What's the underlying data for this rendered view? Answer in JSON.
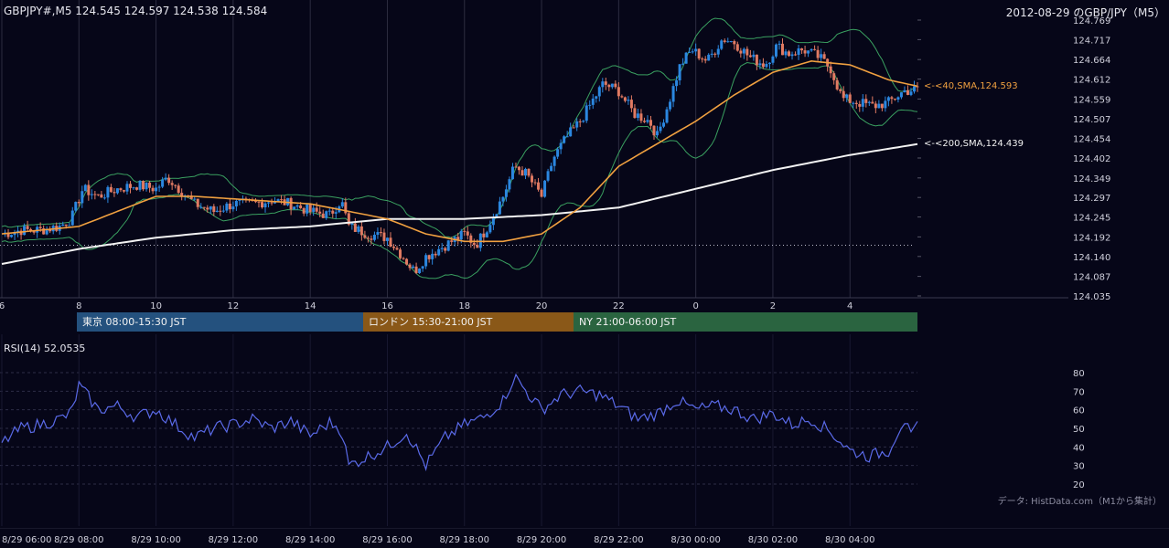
{
  "header": {
    "symbol_quote": "GBPJPY#,M5 124.545 124.597 124.538 124.584",
    "title": "2012-08-29 のGBP/JPY（M5）"
  },
  "ma_labels": {
    "sma40": "<-<40,SMA,124.593",
    "sma200": "<-<200,SMA,124.439"
  },
  "sessions": {
    "tokyo": "東京 08:00-15:30 JST",
    "london": "ロンドン 15:30-21:00 JST",
    "ny": "NY 21:00-06:00 JST"
  },
  "rsi": {
    "label": "RSI(14) 52.0535"
  },
  "source_note": "データ: HistData.com（M1から集計）",
  "colors": {
    "background": "#060618",
    "candle_up": "#2b87e0",
    "candle_down": "#e07a62",
    "sma40": "#f0a040",
    "sma200": "#f2f2f2",
    "bollinger": "#3aa060",
    "rsi": "#5a6ae8",
    "grid": "#2c2c40"
  },
  "chart_data": [
    {
      "type": "candlestick",
      "name": "price",
      "y_ticks": [
        "124.769",
        "124.717",
        "124.664",
        "124.612",
        "124.559",
        "124.507",
        "124.454",
        "124.402",
        "124.349",
        "124.297",
        "124.245",
        "124.192",
        "124.140",
        "124.087",
        "124.035"
      ],
      "ylim": [
        124.035,
        124.769
      ],
      "x_tick_labels": [
        "6",
        "8",
        "10",
        "12",
        "14",
        "16",
        "18",
        "20",
        "22",
        "0",
        "2",
        "4"
      ],
      "x_hours_range": [
        6.0,
        29.75
      ],
      "dotted_level": 124.17,
      "close_anchors": [
        [
          6.0,
          124.2
        ],
        [
          6.5,
          124.21
        ],
        [
          7.0,
          124.21
        ],
        [
          7.5,
          124.22
        ],
        [
          7.8,
          124.24
        ],
        [
          8.1,
          124.32
        ],
        [
          8.5,
          124.3
        ],
        [
          9.0,
          124.32
        ],
        [
          9.5,
          124.33
        ],
        [
          10.0,
          124.32
        ],
        [
          10.3,
          124.35
        ],
        [
          10.6,
          124.32
        ],
        [
          11.0,
          124.28
        ],
        [
          11.5,
          124.26
        ],
        [
          12.0,
          124.28
        ],
        [
          12.5,
          124.28
        ],
        [
          13.0,
          124.29
        ],
        [
          13.5,
          124.28
        ],
        [
          14.0,
          124.26
        ],
        [
          14.5,
          124.25
        ],
        [
          14.8,
          124.29
        ],
        [
          15.0,
          124.22
        ],
        [
          15.5,
          124.2
        ],
        [
          16.0,
          124.19
        ],
        [
          16.4,
          124.14
        ],
        [
          16.7,
          124.1
        ],
        [
          17.0,
          124.14
        ],
        [
          17.5,
          124.17
        ],
        [
          18.0,
          124.2
        ],
        [
          18.3,
          124.17
        ],
        [
          18.6,
          124.22
        ],
        [
          19.0,
          124.3
        ],
        [
          19.3,
          124.38
        ],
        [
          19.6,
          124.36
        ],
        [
          20.0,
          124.3
        ],
        [
          20.3,
          124.4
        ],
        [
          20.6,
          124.45
        ],
        [
          21.0,
          124.5
        ],
        [
          21.3,
          124.55
        ],
        [
          21.6,
          124.6
        ],
        [
          22.0,
          124.58
        ],
        [
          22.4,
          124.52
        ],
        [
          22.8,
          124.5
        ],
        [
          23.0,
          124.46
        ],
        [
          23.3,
          124.55
        ],
        [
          23.6,
          124.65
        ],
        [
          23.9,
          124.69
        ],
        [
          24.3,
          124.66
        ],
        [
          24.7,
          124.72
        ],
        [
          25.0,
          124.71
        ],
        [
          25.4,
          124.67
        ],
        [
          25.8,
          124.65
        ],
        [
          26.1,
          124.7
        ],
        [
          26.4,
          124.68
        ],
        [
          26.8,
          124.69
        ],
        [
          27.2,
          124.67
        ],
        [
          27.5,
          124.64
        ],
        [
          27.8,
          124.56
        ],
        [
          28.2,
          124.55
        ],
        [
          28.6,
          124.54
        ],
        [
          29.0,
          124.55
        ],
        [
          29.4,
          124.58
        ],
        [
          29.75,
          124.584
        ]
      ],
      "series": [
        {
          "name": "40,SMA",
          "last": 124.593,
          "anchors": [
            [
              6.0,
              124.2
            ],
            [
              8.0,
              124.22
            ],
            [
              9.0,
              124.26
            ],
            [
              10.0,
              124.3
            ],
            [
              11.0,
              124.3
            ],
            [
              12.5,
              124.29
            ],
            [
              14.0,
              124.28
            ],
            [
              15.0,
              124.26
            ],
            [
              16.0,
              124.24
            ],
            [
              17.0,
              124.2
            ],
            [
              18.0,
              124.18
            ],
            [
              19.0,
              124.18
            ],
            [
              20.0,
              124.2
            ],
            [
              21.0,
              124.27
            ],
            [
              22.0,
              124.38
            ],
            [
              23.0,
              124.44
            ],
            [
              24.0,
              124.5
            ],
            [
              25.0,
              124.57
            ],
            [
              26.0,
              124.63
            ],
            [
              27.0,
              124.66
            ],
            [
              28.0,
              124.65
            ],
            [
              29.0,
              124.61
            ],
            [
              29.75,
              124.593
            ]
          ]
        },
        {
          "name": "200,SMA",
          "last": 124.439,
          "anchors": [
            [
              6.0,
              124.12
            ],
            [
              8.0,
              124.16
            ],
            [
              10.0,
              124.19
            ],
            [
              12.0,
              124.21
            ],
            [
              14.0,
              124.22
            ],
            [
              16.0,
              124.24
            ],
            [
              18.0,
              124.24
            ],
            [
              20.0,
              124.25
            ],
            [
              22.0,
              124.27
            ],
            [
              24.0,
              124.32
            ],
            [
              26.0,
              124.37
            ],
            [
              28.0,
              124.41
            ],
            [
              29.75,
              124.439
            ]
          ]
        }
      ]
    },
    {
      "type": "line",
      "name": "RSI(14)",
      "last": 52.0535,
      "y_ticks": [
        80,
        70,
        60,
        50,
        40,
        30,
        20
      ],
      "ylim": [
        20,
        80
      ],
      "anchors": [
        [
          6.0,
          42
        ],
        [
          6.5,
          50
        ],
        [
          7.0,
          52
        ],
        [
          7.5,
          55
        ],
        [
          7.8,
          58
        ],
        [
          8.0,
          73
        ],
        [
          8.2,
          68
        ],
        [
          8.5,
          60
        ],
        [
          9.0,
          62
        ],
        [
          9.5,
          56
        ],
        [
          10.0,
          60
        ],
        [
          10.5,
          52
        ],
        [
          11.0,
          45
        ],
        [
          11.5,
          50
        ],
        [
          12.0,
          52
        ],
        [
          12.5,
          55
        ],
        [
          13.0,
          50
        ],
        [
          13.5,
          54
        ],
        [
          14.0,
          46
        ],
        [
          14.5,
          53
        ],
        [
          14.8,
          50
        ],
        [
          15.0,
          30
        ],
        [
          15.5,
          35
        ],
        [
          16.0,
          40
        ],
        [
          16.5,
          48
        ],
        [
          17.0,
          30
        ],
        [
          17.5,
          45
        ],
        [
          18.0,
          52
        ],
        [
          18.5,
          56
        ],
        [
          19.0,
          65
        ],
        [
          19.3,
          78
        ],
        [
          19.6,
          70
        ],
        [
          20.0,
          60
        ],
        [
          20.5,
          68
        ],
        [
          21.0,
          70
        ],
        [
          21.5,
          68
        ],
        [
          22.0,
          62
        ],
        [
          22.5,
          55
        ],
        [
          23.0,
          58
        ],
        [
          23.5,
          65
        ],
        [
          24.0,
          60
        ],
        [
          24.5,
          62
        ],
        [
          25.0,
          60
        ],
        [
          25.5,
          55
        ],
        [
          26.0,
          58
        ],
        [
          26.5,
          52
        ],
        [
          27.0,
          55
        ],
        [
          27.5,
          48
        ],
        [
          28.0,
          38
        ],
        [
          28.5,
          35
        ],
        [
          29.0,
          38
        ],
        [
          29.4,
          55
        ],
        [
          29.6,
          44
        ],
        [
          29.75,
          52
        ]
      ]
    }
  ],
  "time_axis": [
    "8/29 06:00",
    "8/29 08:00",
    "8/29 10:00",
    "8/29 12:00",
    "8/29 14:00",
    "8/29 16:00",
    "8/29 18:00",
    "8/29 20:00",
    "8/29 22:00",
    "8/30 00:00",
    "8/30 02:00",
    "8/30 04:00"
  ]
}
